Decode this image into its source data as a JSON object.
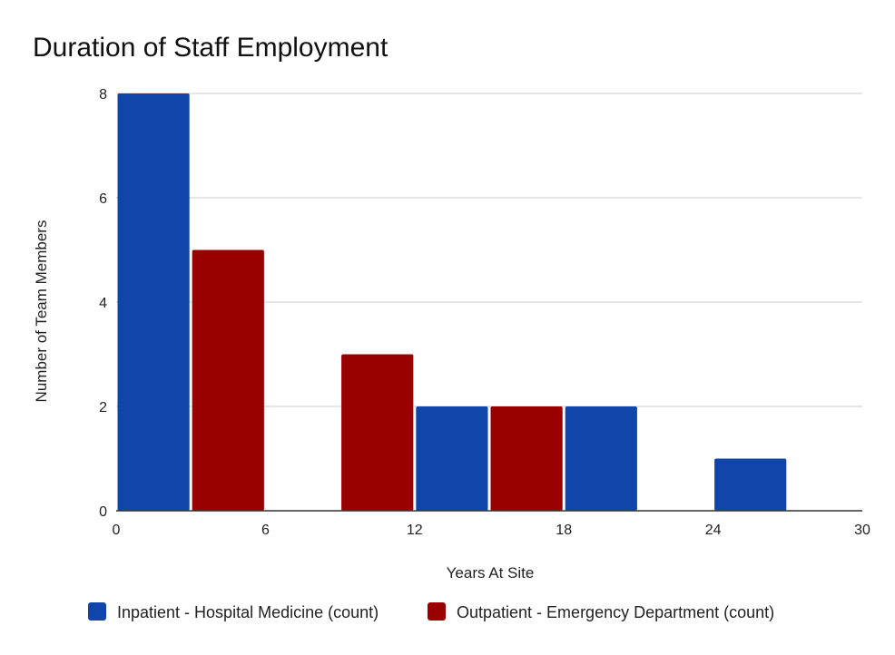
{
  "chart_data": {
    "type": "bar",
    "title": "Duration of Staff Employment",
    "xlabel": "Years At Site",
    "ylabel": "Number of Team Members",
    "xlim": [
      0,
      30
    ],
    "ylim": [
      0,
      8
    ],
    "x_ticks": [
      0,
      6,
      12,
      18,
      24,
      30
    ],
    "y_ticks": [
      0,
      2,
      4,
      6,
      8
    ],
    "grid": true,
    "legend_position": "bottom",
    "bin_width": 3,
    "series": [
      {
        "name": "Inpatient - Hospital Medicine (count)",
        "color": "#1046a9",
        "bars": [
          {
            "x0": 0,
            "x1": 3,
            "value": 8
          },
          {
            "x0": 12,
            "x1": 15,
            "value": 2
          },
          {
            "x0": 18,
            "x1": 21,
            "value": 2
          },
          {
            "x0": 24,
            "x1": 27,
            "value": 1
          }
        ]
      },
      {
        "name": "Outpatient - Emergency Department (count)",
        "color": "#990000",
        "bars": [
          {
            "x0": 3,
            "x1": 6,
            "value": 5
          },
          {
            "x0": 9,
            "x1": 12,
            "value": 3
          },
          {
            "x0": 15,
            "x1": 18,
            "value": 2
          }
        ]
      }
    ]
  }
}
